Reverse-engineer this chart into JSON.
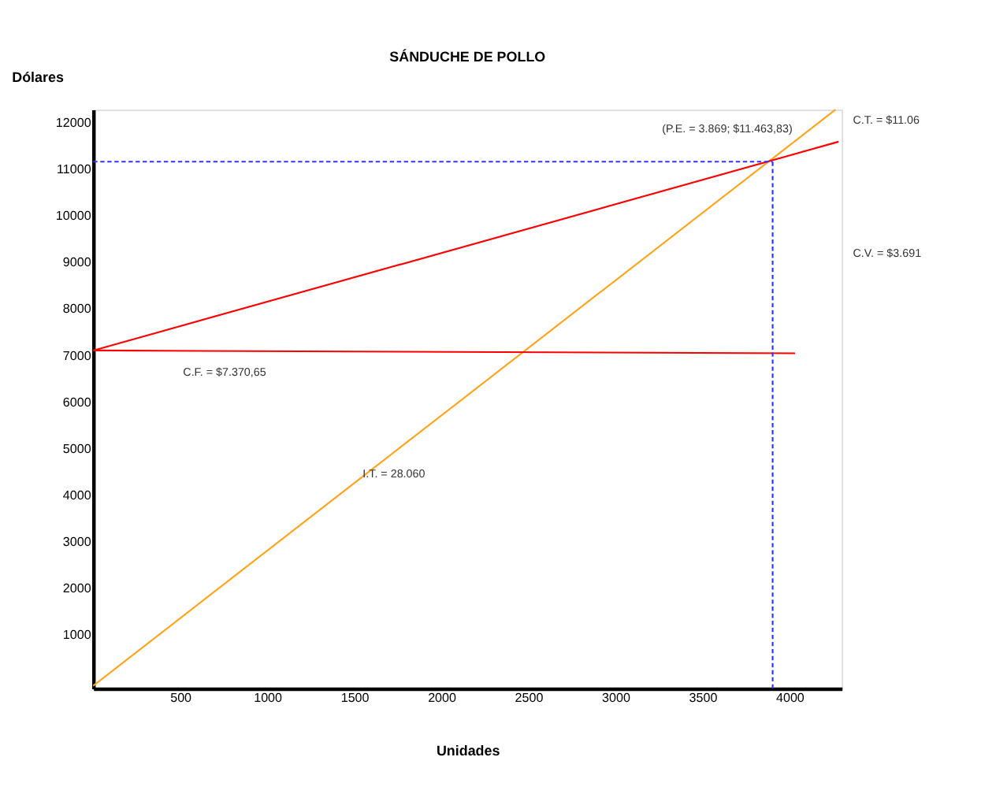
{
  "chart_data": {
    "type": "line",
    "title": "SÁNDUCHE DE POLLO",
    "xlabel": "Unidades",
    "ylabel": "Dólares",
    "xlim": [
      0,
      4300
    ],
    "ylim": [
      -180,
      12270
    ],
    "xticks": [
      500,
      1000,
      1500,
      2000,
      2500,
      3000,
      3500,
      4000
    ],
    "yticks": [
      1000,
      2000,
      3000,
      4000,
      5000,
      6000,
      7000,
      8000,
      9000,
      10000,
      11000,
      12000
    ],
    "grid": false,
    "marker": "none",
    "series": [
      {
        "color": "#ffa520",
        "x": [
          0,
          4264
        ],
        "values": [
          -120,
          12270
        ],
        "line_style": "solid"
      },
      {
        "color": "#ff0000",
        "x": [
          0,
          4282
        ],
        "values": [
          7090,
          11580
        ],
        "line_style": "solid"
      },
      {
        "color": "#ff0000",
        "x": [
          0,
          4032
        ],
        "values": [
          7090,
          7030
        ],
        "line_style": "solid"
      },
      {
        "color": "#3333ff",
        "x": [
          0,
          3903
        ],
        "values": [
          11150,
          11150
        ],
        "line_style": "dashed"
      },
      {
        "color": "#3333ff",
        "x": [
          3903,
          3903
        ],
        "values": [
          -180,
          11150
        ],
        "line_style": "dashed"
      }
    ],
    "annotations": [
      "(P.E. = 3.869; $11.463,83)",
      "C.T. = $11.06",
      "C.V. = $3.691",
      "C.F. = $7.370,65",
      "I.T. = 28.060"
    ]
  }
}
